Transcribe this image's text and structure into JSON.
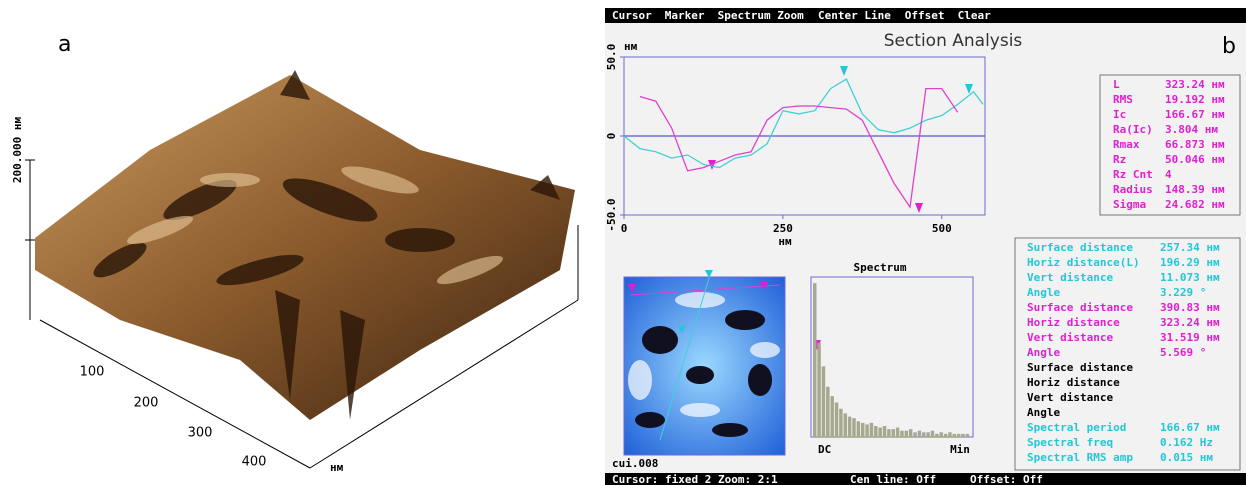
{
  "panel_a": {
    "label": "a",
    "z_axis_label": "200.000 нм",
    "x_ticks": [
      "100",
      "200",
      "300",
      "400"
    ],
    "x_unit": "нм"
  },
  "panel_b": {
    "label": "b",
    "menu": [
      "Cursor",
      "Marker",
      "Spectrum Zoom",
      "Center Line",
      "Offset",
      "Clear"
    ],
    "title": "Section Analysis",
    "section_plot": {
      "type": "line",
      "y_unit": "нм",
      "x_unit": "нм",
      "xlim": [
        0,
        568
      ],
      "ylim": [
        -50,
        50
      ],
      "xticks": [
        0,
        250,
        500
      ],
      "yticks": [
        {
          "value": 50,
          "label": "50.0"
        },
        0,
        {
          "value": -50,
          "label": "-50.0"
        }
      ],
      "x": [
        0,
        25,
        50,
        75,
        100,
        125,
        150,
        175,
        200,
        225,
        250,
        275,
        300,
        325,
        350,
        375,
        400,
        425,
        450,
        475,
        500,
        525,
        550,
        565
      ],
      "series": [
        {
          "color": "#40d0d8",
          "values": [
            0,
            -8,
            -10,
            -14,
            -12,
            -18,
            -20,
            -14,
            -12,
            -5,
            16,
            14,
            16,
            30,
            36,
            14,
            4,
            2,
            5,
            10,
            13,
            20,
            28,
            20
          ]
        },
        {
          "color": "#e040d0",
          "values": [
            null,
            25,
            22,
            5,
            -22,
            -20,
            -16,
            -12,
            -10,
            10,
            18,
            19,
            19,
            18,
            17,
            10,
            -10,
            -30,
            -45,
            30,
            30,
            15,
            null,
            null
          ]
        }
      ]
    },
    "stats": [
      {
        "label": "L",
        "value": "323.24 нм",
        "color": "#e020d0"
      },
      {
        "label": "RMS",
        "value": "19.192 нм",
        "color": "#e020d0"
      },
      {
        "label": "Ic",
        "value": "166.67 нм",
        "color": "#e020d0"
      },
      {
        "label": "Ra(Ic)",
        "value": "3.804 нм",
        "color": "#e020d0"
      },
      {
        "label": "Rmax",
        "value": "66.873 нм",
        "color": "#e020d0"
      },
      {
        "label": "Rz",
        "value": "50.046 нм",
        "color": "#e020d0"
      },
      {
        "label": "Rz Cnt",
        "value": "4",
        "color": "#e020d0"
      },
      {
        "label": "Radius",
        "value": "148.39 нм",
        "color": "#e020d0"
      },
      {
        "label": "Sigma",
        "value": "24.682 нм",
        "color": "#e020d0"
      }
    ],
    "measurements": [
      {
        "label": "Surface distance",
        "value": "257.34 нм",
        "color": "#20c8d8"
      },
      {
        "label": "Horiz distance(L)",
        "value": "196.29 нм",
        "color": "#20c8d8"
      },
      {
        "label": "Vert distance",
        "value": "11.073 нм",
        "color": "#20c8d8"
      },
      {
        "label": "Angle",
        "value": "3.229 °",
        "color": "#20c8d8"
      },
      {
        "label": "Surface distance",
        "value": "390.83 нм",
        "color": "#e020d0"
      },
      {
        "label": "Horiz distance",
        "value": "323.24 нм",
        "color": "#e020d0"
      },
      {
        "label": "Vert distance",
        "value": "31.519 нм",
        "color": "#e020d0"
      },
      {
        "label": "Angle",
        "value": "5.569 °",
        "color": "#e020d0"
      },
      {
        "label": "Surface distance",
        "color": "#000000"
      },
      {
        "label": "Horiz distance",
        "color": "#000000"
      },
      {
        "label": "Vert distance",
        "color": "#000000"
      },
      {
        "label": "Angle",
        "color": "#000000"
      },
      {
        "label": "Spectral period",
        "value": "166.67 нм",
        "color": "#20c8d8"
      },
      {
        "label": "Spectral freq",
        "value": "0.162 Hz",
        "color": "#20c8d8"
      },
      {
        "label": "Spectral RMS amp",
        "value": "0.015 нм",
        "color": "#20c8d8"
      }
    ],
    "spectrum": {
      "title": "Spectrum",
      "start_label": "DC",
      "end_label": "Min",
      "ylim": [
        0,
        100
      ],
      "color": "#a8a890",
      "values": [
        98,
        60,
        45,
        32,
        26,
        22,
        18,
        15,
        13,
        12,
        10,
        9,
        8,
        9,
        7,
        6,
        7,
        5,
        5,
        6,
        4,
        4,
        5,
        3,
        4,
        3,
        3,
        4,
        2,
        3,
        2,
        3,
        2,
        2,
        2,
        2
      ]
    },
    "file": "cui.008",
    "status": [
      "Cursor: fixed 2 Zoom: 2:1",
      "Cen line: Off",
      "Offset: Off"
    ]
  }
}
